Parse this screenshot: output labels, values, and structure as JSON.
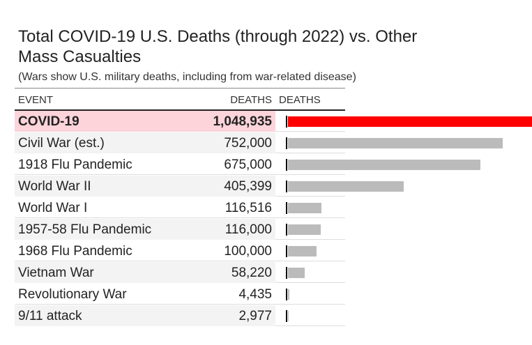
{
  "title_line1": "Total COVID-19 U.S. Deaths (through 2022) vs. Other",
  "title_line2": "Mass Casualties",
  "subtitle": "(Wars show U.S. military deaths, including from war-related disease)",
  "colors": {
    "highlight_row": "#fcd4da",
    "highlight_bar": "#ff0000",
    "bar": "#bbbbbb",
    "row_alt": "#f3f3f3"
  },
  "chart_data": {
    "type": "table",
    "columns": [
      "EVENT",
      "DEATHS",
      "DEATHS"
    ],
    "categories": [
      "COVID-19",
      "Civil War (est.)",
      "1918 Flu Pandemic",
      "World War II",
      "World War I",
      "1957-58 Flu Pandemic",
      "1968 Flu Pandemic",
      "Vietnam War",
      "Revolutionary War",
      "9/11 attack"
    ],
    "display_values": [
      "1,048,935",
      "752,000",
      "675,000",
      "405,399",
      "116,516",
      "116,000",
      "100,000",
      "58,220",
      "4,435",
      "2,977"
    ],
    "values": [
      1048935,
      752000,
      675000,
      405399,
      116516,
      116000,
      100000,
      58220,
      4435,
      2977
    ],
    "highlight_index": 0,
    "bar_scale_max": 110000
  }
}
